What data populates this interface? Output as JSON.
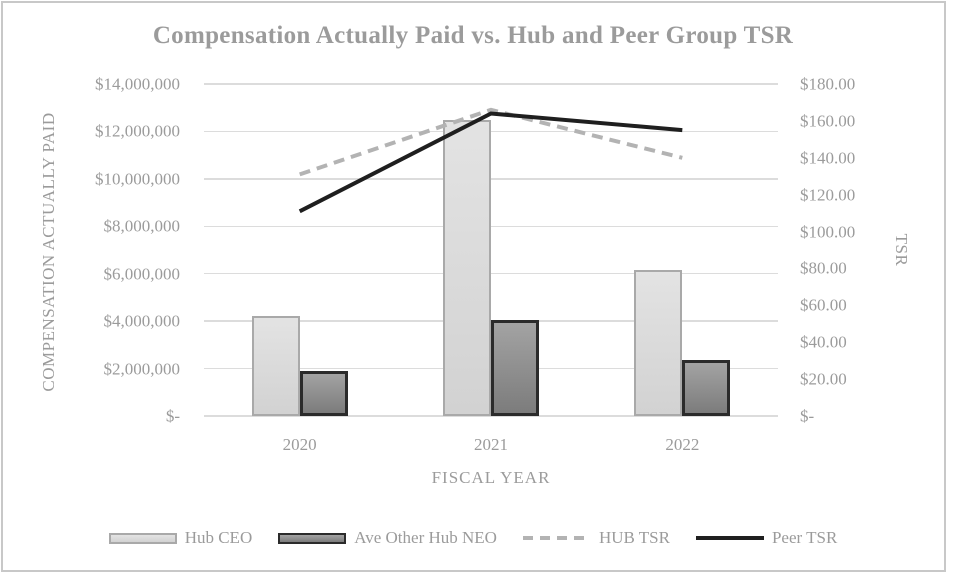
{
  "title": "Compensation Actually Paid vs. Hub and Peer Group TSR",
  "chart_data": {
    "type": "combo",
    "subtypes": [
      "bar",
      "line"
    ],
    "categories": [
      "2020",
      "2021",
      "2022"
    ],
    "series": [
      {
        "name": "Hub CEO",
        "kind": "bar",
        "axis": "left",
        "values": [
          4200000,
          12500000,
          6150000
        ],
        "fill_top": "#e3e3e3",
        "fill_bottom": "#d2d2d2",
        "stroke": "#a9a9a9",
        "stroke_width": 2
      },
      {
        "name": "Ave Other Hub NEO",
        "kind": "bar",
        "axis": "left",
        "values": [
          1900000,
          4050000,
          2350000
        ],
        "fill_top": "#a3a3a3",
        "fill_bottom": "#7c7c7c",
        "stroke": "#2b2b2b",
        "stroke_width": 3
      },
      {
        "name": "HUB TSR",
        "kind": "line",
        "style": "dashed",
        "axis": "right",
        "values": [
          131,
          166,
          140
        ],
        "stroke": "#b3b3b3",
        "stroke_width": 4
      },
      {
        "name": "Peer TSR",
        "kind": "line",
        "style": "solid",
        "axis": "right",
        "values": [
          111,
          164,
          155
        ],
        "stroke": "#1f1f1f",
        "stroke_width": 4
      }
    ],
    "left_axis": {
      "title": "COMPENSATION ACTUALLY PAID",
      "min": 0,
      "max": 14000000,
      "step": 2000000,
      "tick_labels": [
        "$14,000,000",
        "$12,000,000",
        "$10,000,000",
        "$8,000,000",
        "$6,000,000",
        "$4,000,000",
        "$2,000,000",
        "$-"
      ]
    },
    "right_axis": {
      "title": "TSR",
      "min": 0,
      "max": 180,
      "step": 20,
      "tick_labels": [
        "$180.00",
        "$160.00",
        "$140.00",
        "$120.00",
        "$100.00",
        "$80.00",
        "$60.00",
        "$40.00",
        "$20.00",
        "$-"
      ]
    },
    "x_axis": {
      "title": "FISCAL YEAR"
    },
    "grid": true,
    "legend_position": "bottom"
  },
  "colors": {
    "frame_border": "#c8c8c8",
    "gridline": "#dcdcdc",
    "text": "#9b9b9b",
    "background": "#ffffff"
  }
}
